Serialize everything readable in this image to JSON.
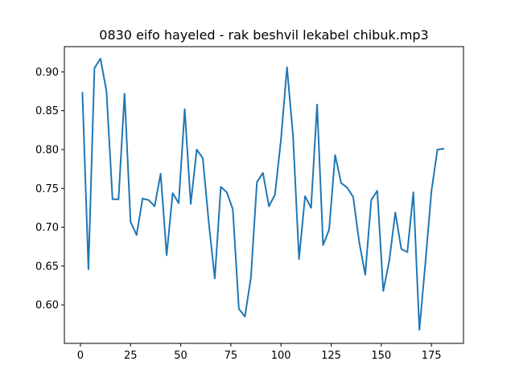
{
  "chart_data": {
    "type": "line",
    "title": "0830 eifo hayeled - rak beshvil lekabel chibuk.mp3",
    "xlabel": "",
    "ylabel": "",
    "xlim": [
      -8,
      191
    ],
    "ylim": [
      0.5505,
      0.9325
    ],
    "xticks": [
      0,
      25,
      50,
      75,
      100,
      125,
      150,
      175
    ],
    "yticks": [
      0.6,
      0.65,
      0.7,
      0.75,
      0.8,
      0.85,
      0.9
    ],
    "ytick_labels": [
      "0.60",
      "0.65",
      "0.70",
      "0.75",
      "0.80",
      "0.85",
      "0.90"
    ],
    "grid": false,
    "series": [
      {
        "color": "#1f77b4",
        "x": [
          1,
          4,
          7,
          10,
          13,
          16,
          19,
          22,
          25,
          28,
          31,
          34,
          37,
          40,
          43,
          46,
          49,
          52,
          55,
          58,
          61,
          64,
          67,
          70,
          73,
          76,
          79,
          82,
          85,
          88,
          91,
          94,
          97,
          100,
          103,
          106,
          109,
          112,
          115,
          118,
          121,
          124,
          127,
          130,
          133,
          136,
          139,
          142,
          145,
          148,
          151,
          154,
          157,
          160,
          163,
          166,
          169,
          172,
          175,
          178,
          181
        ],
        "values": [
          0.873,
          0.646,
          0.905,
          0.917,
          0.875,
          0.736,
          0.736,
          0.872,
          0.707,
          0.69,
          0.737,
          0.735,
          0.727,
          0.769,
          0.664,
          0.744,
          0.731,
          0.852,
          0.73,
          0.8,
          0.789,
          0.706,
          0.634,
          0.752,
          0.745,
          0.723,
          0.595,
          0.585,
          0.635,
          0.758,
          0.77,
          0.727,
          0.742,
          0.813,
          0.906,
          0.818,
          0.659,
          0.74,
          0.725,
          0.858,
          0.677,
          0.697,
          0.793,
          0.757,
          0.751,
          0.739,
          0.681,
          0.639,
          0.735,
          0.747,
          0.618,
          0.657,
          0.719,
          0.672,
          0.668,
          0.745,
          0.568,
          0.654,
          0.746,
          0.8,
          0.801
        ]
      }
    ]
  }
}
